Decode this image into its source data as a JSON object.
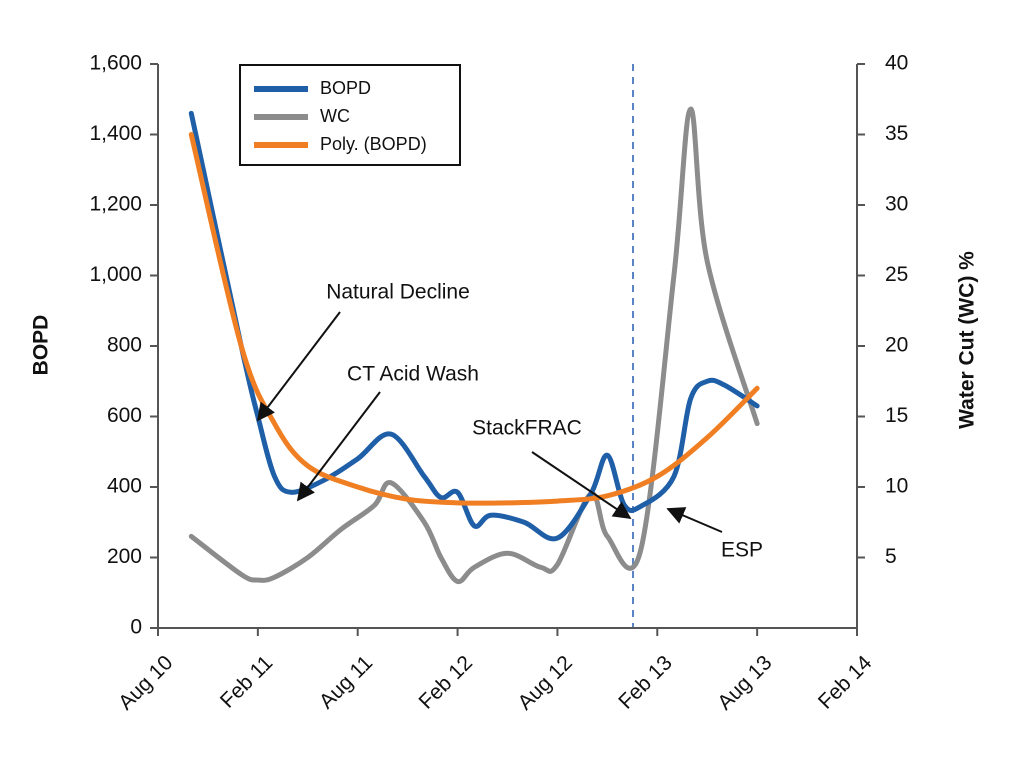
{
  "chart_data": {
    "type": "line",
    "ylabel": "BOPD",
    "y2label": "Water Cut (WC) %",
    "xlim": [
      "2010-08",
      "2014-02"
    ],
    "xticks": [
      {
        "value": "2010-08",
        "label": "Aug 10"
      },
      {
        "value": "2011-02",
        "label": "Feb 11"
      },
      {
        "value": "2011-08",
        "label": "Aug 11"
      },
      {
        "value": "2012-02",
        "label": "Feb 12"
      },
      {
        "value": "2012-08",
        "label": "Aug 12"
      },
      {
        "value": "2013-02",
        "label": "Feb 13"
      },
      {
        "value": "2013-08",
        "label": "Aug 13"
      },
      {
        "value": "2014-02",
        "label": "Feb 14"
      }
    ],
    "ylim": [
      0,
      1600
    ],
    "yticks": [
      0,
      {
        "value": 200,
        "label": "200"
      },
      400,
      600,
      800,
      {
        "value": 1000,
        "label": "1,000"
      },
      {
        "value": 1200,
        "label": "1,200"
      },
      {
        "value": 1400,
        "label": "1,400"
      },
      {
        "value": 1600,
        "label": "1,600"
      }
    ],
    "y2lim": [
      0,
      40
    ],
    "y2ticks": [
      5,
      10,
      15,
      20,
      25,
      30,
      35,
      40
    ],
    "legend": "top-left",
    "series": [
      {
        "name": "BOPD",
        "color": "#1f5fa8",
        "x": [
          "2010-10",
          "2011-01",
          "2011-02",
          "2011-03",
          "2011-04",
          "2011-06",
          "2011-08",
          "2011-10",
          "2011-12",
          "2012-01",
          "2012-02",
          "2012-03",
          "2012-04",
          "2012-06",
          "2012-08",
          "2012-10",
          "2012-11",
          "2012-12",
          "2013-01",
          "2013-03",
          "2013-04",
          "2013-05",
          "2013-06",
          "2013-08"
        ],
        "values": [
          1460,
          800,
          600,
          430,
          385,
          420,
          480,
          550,
          430,
          370,
          385,
          290,
          320,
          300,
          255,
          380,
          490,
          350,
          345,
          430,
          650,
          700,
          690,
          630
        ]
      },
      {
        "name": "WC",
        "color": "#8c8c8c",
        "axis": "y2",
        "x": [
          "2010-10",
          "2011-01",
          "2011-02",
          "2011-03",
          "2011-05",
          "2011-07",
          "2011-09",
          "2011-10",
          "2011-12",
          "2012-01",
          "2012-02",
          "2012-03",
          "2012-05",
          "2012-07",
          "2012-08",
          "2012-10",
          "2012-11",
          "2013-01",
          "2013-03",
          "2013-04",
          "2013-05",
          "2013-08"
        ],
        "values": [
          6.5,
          3.8,
          3.4,
          3.6,
          5,
          7,
          8.7,
          10.3,
          7.5,
          5,
          3.3,
          4.3,
          5.3,
          4.3,
          4.5,
          9.5,
          6.5,
          5.5,
          25,
          36.8,
          26,
          14.5
        ]
      },
      {
        "name": "Poly. (BOPD)",
        "color": "#f07f23",
        "x": [
          "2010-10",
          "2011-01",
          "2011-03",
          "2011-05",
          "2011-08",
          "2011-11",
          "2012-02",
          "2012-05",
          "2012-08",
          "2012-11",
          "2013-02",
          "2013-05",
          "2013-08"
        ],
        "values": [
          1400,
          800,
          580,
          460,
          400,
          365,
          355,
          355,
          360,
          375,
          430,
          540,
          680
        ]
      }
    ],
    "annotations": [
      "Natural Decline",
      "CT Acid Wash",
      "StackFRAC",
      "ESP"
    ]
  }
}
